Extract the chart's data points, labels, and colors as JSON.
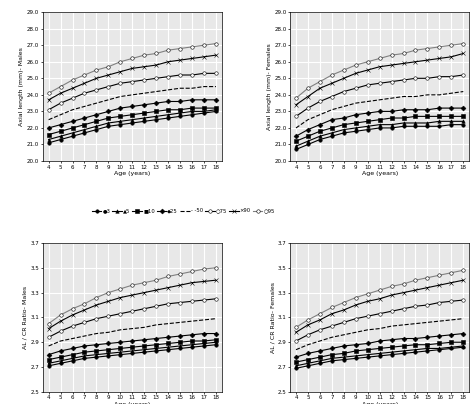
{
  "ages": [
    4,
    5,
    6,
    7,
    8,
    9,
    10,
    11,
    12,
    13,
    14,
    15,
    16,
    17,
    18
  ],
  "percentiles": [
    "3",
    "5",
    "10",
    "25",
    "50",
    "75",
    "90",
    "95"
  ],
  "AL_males": {
    "3": [
      21.1,
      21.3,
      21.5,
      21.7,
      21.9,
      22.1,
      22.2,
      22.3,
      22.4,
      22.5,
      22.6,
      22.7,
      22.8,
      22.9,
      23.0
    ],
    "5": [
      21.3,
      21.5,
      21.7,
      21.9,
      22.1,
      22.3,
      22.4,
      22.5,
      22.6,
      22.7,
      22.8,
      22.9,
      23.0,
      23.0,
      23.1
    ],
    "10": [
      21.6,
      21.8,
      22.0,
      22.2,
      22.4,
      22.6,
      22.7,
      22.8,
      22.9,
      23.0,
      23.1,
      23.1,
      23.2,
      23.2,
      23.2
    ],
    "25": [
      22.0,
      22.2,
      22.4,
      22.6,
      22.8,
      23.0,
      23.2,
      23.3,
      23.4,
      23.5,
      23.6,
      23.6,
      23.7,
      23.7,
      23.7
    ],
    "50": [
      22.5,
      22.8,
      23.1,
      23.3,
      23.5,
      23.7,
      23.9,
      24.0,
      24.1,
      24.2,
      24.3,
      24.4,
      24.4,
      24.5,
      24.5
    ],
    "75": [
      23.1,
      23.5,
      23.8,
      24.1,
      24.3,
      24.5,
      24.7,
      24.8,
      24.9,
      25.0,
      25.1,
      25.2,
      25.2,
      25.3,
      25.3
    ],
    "90": [
      23.7,
      24.1,
      24.4,
      24.7,
      25.0,
      25.2,
      25.4,
      25.6,
      25.7,
      25.8,
      26.0,
      26.1,
      26.2,
      26.3,
      26.4
    ],
    "95": [
      24.1,
      24.5,
      24.9,
      25.2,
      25.5,
      25.7,
      26.0,
      26.2,
      26.4,
      26.5,
      26.7,
      26.8,
      26.9,
      27.0,
      27.1
    ]
  },
  "AL_females": {
    "3": [
      20.7,
      21.0,
      21.3,
      21.5,
      21.7,
      21.8,
      21.9,
      22.0,
      22.0,
      22.1,
      22.1,
      22.1,
      22.1,
      22.2,
      22.2
    ],
    "5": [
      20.9,
      21.2,
      21.5,
      21.7,
      21.9,
      22.0,
      22.1,
      22.2,
      22.2,
      22.3,
      22.3,
      22.3,
      22.4,
      22.4,
      22.4
    ],
    "10": [
      21.2,
      21.5,
      21.8,
      22.0,
      22.2,
      22.3,
      22.4,
      22.5,
      22.6,
      22.6,
      22.7,
      22.7,
      22.7,
      22.7,
      22.7
    ],
    "25": [
      21.5,
      21.9,
      22.2,
      22.5,
      22.6,
      22.8,
      22.9,
      23.0,
      23.0,
      23.1,
      23.1,
      23.1,
      23.2,
      23.2,
      23.2
    ],
    "50": [
      22.0,
      22.5,
      22.8,
      23.1,
      23.3,
      23.5,
      23.6,
      23.7,
      23.8,
      23.9,
      23.9,
      24.0,
      24.0,
      24.1,
      24.2
    ],
    "75": [
      22.7,
      23.2,
      23.6,
      23.9,
      24.2,
      24.4,
      24.6,
      24.7,
      24.8,
      24.9,
      25.0,
      25.0,
      25.1,
      25.1,
      25.2
    ],
    "90": [
      23.4,
      23.9,
      24.4,
      24.7,
      25.0,
      25.3,
      25.5,
      25.7,
      25.8,
      25.9,
      26.0,
      26.1,
      26.2,
      26.3,
      26.5
    ],
    "95": [
      23.8,
      24.4,
      24.8,
      25.2,
      25.5,
      25.8,
      26.0,
      26.2,
      26.4,
      26.5,
      26.7,
      26.8,
      26.9,
      27.0,
      27.1
    ]
  },
  "ALCR_males": {
    "3": [
      2.71,
      2.73,
      2.75,
      2.77,
      2.78,
      2.79,
      2.8,
      2.81,
      2.82,
      2.83,
      2.84,
      2.85,
      2.86,
      2.87,
      2.88
    ],
    "5": [
      2.73,
      2.75,
      2.77,
      2.79,
      2.8,
      2.81,
      2.82,
      2.83,
      2.84,
      2.85,
      2.86,
      2.87,
      2.88,
      2.89,
      2.9
    ],
    "10": [
      2.76,
      2.78,
      2.8,
      2.82,
      2.83,
      2.84,
      2.85,
      2.86,
      2.87,
      2.88,
      2.89,
      2.9,
      2.91,
      2.91,
      2.92
    ],
    "25": [
      2.8,
      2.83,
      2.85,
      2.87,
      2.88,
      2.89,
      2.9,
      2.91,
      2.92,
      2.93,
      2.94,
      2.95,
      2.96,
      2.97,
      2.97
    ],
    "50": [
      2.87,
      2.91,
      2.93,
      2.95,
      2.97,
      2.98,
      3.0,
      3.01,
      3.02,
      3.04,
      3.05,
      3.06,
      3.07,
      3.08,
      3.09
    ],
    "75": [
      2.94,
      2.99,
      3.03,
      3.06,
      3.09,
      3.11,
      3.13,
      3.15,
      3.17,
      3.19,
      3.21,
      3.22,
      3.23,
      3.24,
      3.25
    ],
    "90": [
      3.01,
      3.07,
      3.12,
      3.16,
      3.2,
      3.23,
      3.26,
      3.28,
      3.3,
      3.32,
      3.34,
      3.36,
      3.38,
      3.39,
      3.4
    ],
    "95": [
      3.05,
      3.12,
      3.17,
      3.21,
      3.26,
      3.3,
      3.33,
      3.36,
      3.38,
      3.4,
      3.43,
      3.45,
      3.47,
      3.49,
      3.5
    ]
  },
  "ALCR_females": {
    "3": [
      2.69,
      2.71,
      2.73,
      2.75,
      2.76,
      2.77,
      2.78,
      2.79,
      2.8,
      2.81,
      2.82,
      2.83,
      2.84,
      2.85,
      2.86
    ],
    "5": [
      2.71,
      2.73,
      2.75,
      2.77,
      2.78,
      2.79,
      2.8,
      2.81,
      2.82,
      2.83,
      2.84,
      2.85,
      2.85,
      2.86,
      2.87
    ],
    "10": [
      2.74,
      2.76,
      2.78,
      2.8,
      2.81,
      2.83,
      2.84,
      2.85,
      2.86,
      2.87,
      2.88,
      2.88,
      2.89,
      2.9,
      2.9
    ],
    "25": [
      2.78,
      2.81,
      2.83,
      2.85,
      2.87,
      2.88,
      2.89,
      2.91,
      2.92,
      2.93,
      2.93,
      2.94,
      2.95,
      2.96,
      2.97
    ],
    "50": [
      2.84,
      2.88,
      2.91,
      2.94,
      2.96,
      2.98,
      3.0,
      3.01,
      3.03,
      3.04,
      3.05,
      3.06,
      3.07,
      3.08,
      3.09
    ],
    "75": [
      2.91,
      2.96,
      3.0,
      3.03,
      3.06,
      3.09,
      3.11,
      3.13,
      3.15,
      3.17,
      3.19,
      3.2,
      3.22,
      3.23,
      3.24
    ],
    "90": [
      2.98,
      3.04,
      3.08,
      3.13,
      3.16,
      3.2,
      3.23,
      3.25,
      3.28,
      3.3,
      3.32,
      3.34,
      3.36,
      3.38,
      3.4
    ],
    "95": [
      3.02,
      3.08,
      3.13,
      3.18,
      3.22,
      3.26,
      3.29,
      3.32,
      3.35,
      3.37,
      3.4,
      3.42,
      3.44,
      3.46,
      3.48
    ]
  },
  "line_styles": {
    "3": {
      "ls": "-",
      "marker": "o",
      "ms": 2.5,
      "mfc": "black",
      "color": "black"
    },
    "5": {
      "ls": "-",
      "marker": "^",
      "ms": 2.5,
      "mfc": "black",
      "color": "black"
    },
    "10": {
      "ls": "-",
      "marker": "s",
      "ms": 2.5,
      "mfc": "black",
      "color": "black"
    },
    "25": {
      "ls": "-",
      "marker": "D",
      "ms": 2.5,
      "mfc": "black",
      "color": "black"
    },
    "50": {
      "ls": "--",
      "marker": "None",
      "ms": 2.5,
      "mfc": "black",
      "color": "black"
    },
    "75": {
      "ls": "-",
      "marker": "o",
      "ms": 2.5,
      "mfc": "white",
      "color": "black"
    },
    "90": {
      "ls": "-",
      "marker": "x",
      "ms": 3.5,
      "mfc": "black",
      "color": "black"
    },
    "95": {
      "ls": "-",
      "marker": "o",
      "ms": 2.5,
      "mfc": "white",
      "color": "gray"
    }
  },
  "AL_ylim": [
    20.0,
    29.0
  ],
  "AL_yticks": [
    20.0,
    21.0,
    22.0,
    23.0,
    24.0,
    25.0,
    26.0,
    27.0,
    28.0,
    29.0
  ],
  "ALCR_ylim": [
    2.5,
    3.7
  ],
  "ALCR_yticks": [
    2.5,
    2.7,
    2.9,
    3.1,
    3.3,
    3.5,
    3.7
  ],
  "xlabel": "Age (years)",
  "AL_ylabel_m": "Axial length (mm)- Males",
  "AL_ylabel_f": "Axial length (mm)- Females",
  "ALCR_ylabel_m": "AL / CR Ratio- Males",
  "ALCR_ylabel_f": "AL / CR Ratio- Females",
  "background_color": "#e8e8e8",
  "grid_color": "white",
  "leg_labels": [
    "3",
    "5",
    "10",
    "25",
    "50",
    "75",
    "90",
    "95"
  ]
}
